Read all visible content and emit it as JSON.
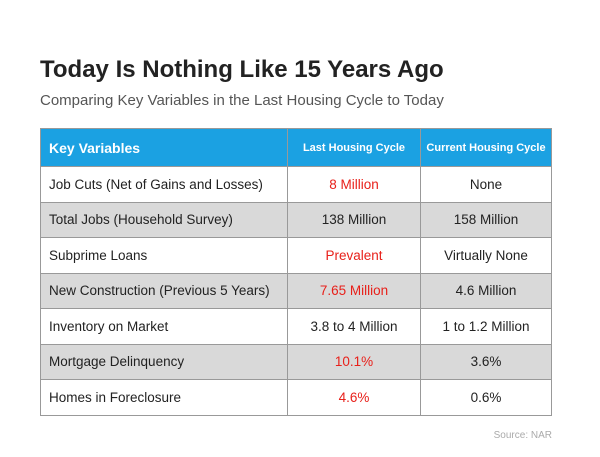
{
  "header": {
    "title": "Today Is Nothing Like 15 Years Ago",
    "subtitle": "Comparing Key Variables in the Last Housing Cycle to Today"
  },
  "table": {
    "columns": [
      "Key Variables",
      "Last Housing Cycle",
      "Current Housing Cycle"
    ],
    "rows": [
      [
        "Job Cuts (Net of Gains and Losses)",
        "8 Million",
        "None"
      ],
      [
        "Total Jobs (Household Survey)",
        "138 Million",
        "158 Million"
      ],
      [
        "Subprime Loans",
        "Prevalent",
        "Virtually None"
      ],
      [
        "New Construction (Previous 5 Years)",
        "7.65 Million",
        "4.6 Million"
      ],
      [
        "Inventory on Market",
        "3.8 to 4 Million",
        "1 to 1.2 Million"
      ],
      [
        "Mortgage Delinquency",
        "10.1%",
        "3.6%"
      ],
      [
        "Homes in Foreclosure",
        "4.6%",
        "0.6%"
      ]
    ]
  },
  "source": "Source: NAR"
}
